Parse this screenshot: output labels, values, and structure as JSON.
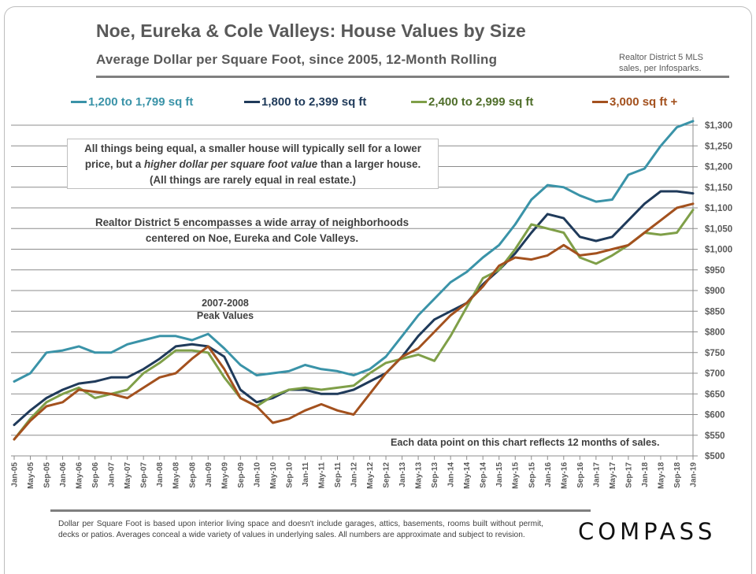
{
  "header": {
    "title": "Noe, Eureka & Cole Valleys: House Values by Size",
    "subtitle": "Average Dollar per Square Foot, since 2005, 12-Month Rolling",
    "source_line1": "Realtor District 5 MLS",
    "source_line2": "sales, per Infosparks."
  },
  "annotations": {
    "note_line1": "All things being equal, a smaller house will typically sell for a lower",
    "note_line2_pre": "price, but a ",
    "note_line2_italic": "higher dollar per square foot value",
    "note_line2_post": " than a larger house.",
    "note_line3": "(All things are rarely equal in real estate.)",
    "district_line1": "Realtor District 5 encompasses a wide array of neighborhoods",
    "district_line2": "centered on Noe, Eureka and Cole Valleys.",
    "peak_line1": "2007-2008",
    "peak_line2": "Peak Values",
    "data_note": "Each data point on this chart reflects 12 months of sales."
  },
  "footer": {
    "footnote": "Dollar per Square Foot is based upon interior living space and doesn't include garages, attics, basements, rooms built without permit, decks or patios. Averages conceal a wide variety of values in underlying sales. All numbers are approximate and subject to revision.",
    "logo": "COMPASS"
  },
  "chart_data": {
    "type": "line",
    "title": "Noe, Eureka & Cole Valleys: House Values by Size",
    "subtitle": "Average Dollar per Square Foot, since 2005, 12-Month Rolling",
    "xlabel": "",
    "ylabel": "Average Dollar per Square Foot",
    "ylim": [
      500,
      1300
    ],
    "y_ticks": [
      500,
      550,
      600,
      650,
      700,
      750,
      800,
      850,
      900,
      950,
      1000,
      1050,
      1100,
      1150,
      1200,
      1250,
      1300
    ],
    "y_tick_labels": [
      "$500",
      "$550",
      "$600",
      "$650",
      "$700",
      "$750",
      "$800",
      "$850",
      "$900",
      "$950",
      "$1,000",
      "$1,050",
      "$1,100",
      "$1,150",
      "$1,200",
      "$1,250",
      "$1,300"
    ],
    "y_axis_side": "right",
    "grid": true,
    "legend_position": "top",
    "x": [
      "Jan-05",
      "May-05",
      "Sep-05",
      "Jan-06",
      "May-06",
      "Sep-06",
      "Jan-07",
      "May-07",
      "Sep-07",
      "Jan-08",
      "May-08",
      "Sep-08",
      "Jan-09",
      "May-09",
      "Sep-09",
      "Jan-10",
      "May-10",
      "Sep-10",
      "Jan-11",
      "May-11",
      "Sep-11",
      "Jan-12",
      "May-12",
      "Sep-12",
      "Jan-13",
      "May-13",
      "Sep-13",
      "Jan-14",
      "May-14",
      "Sep-14",
      "Jan-15",
      "May-15",
      "Sep-15",
      "Jan-16",
      "May-16",
      "Sep-16",
      "Jan-17",
      "May-17",
      "Sep-17",
      "Jan-18",
      "May-18",
      "Sep-18",
      "Jan-19"
    ],
    "series": [
      {
        "name": "1,200 to 1,799 sq ft",
        "color": "#3a93a8",
        "values": [
          680,
          700,
          750,
          755,
          765,
          750,
          750,
          770,
          780,
          790,
          790,
          780,
          795,
          760,
          720,
          695,
          700,
          705,
          720,
          710,
          705,
          695,
          710,
          740,
          790,
          840,
          880,
          920,
          945,
          980,
          1010,
          1060,
          1120,
          1155,
          1150,
          1130,
          1115,
          1120,
          1180,
          1195,
          1250,
          1295,
          1310
        ]
      },
      {
        "name": "1,800 to 2,399 sq ft",
        "color": "#1f3a5a",
        "values": [
          575,
          610,
          640,
          660,
          675,
          680,
          690,
          690,
          710,
          735,
          765,
          770,
          765,
          740,
          660,
          630,
          640,
          660,
          660,
          650,
          650,
          660,
          680,
          700,
          740,
          790,
          830,
          850,
          870,
          915,
          950,
          990,
          1040,
          1085,
          1075,
          1030,
          1020,
          1030,
          1070,
          1110,
          1140,
          1140,
          1135
        ]
      },
      {
        "name": "2,400 to 2,999 sq ft",
        "color": "#7f9f48",
        "values": [
          540,
          590,
          630,
          650,
          665,
          640,
          650,
          660,
          700,
          725,
          755,
          755,
          750,
          690,
          640,
          620,
          645,
          660,
          665,
          660,
          665,
          670,
          700,
          725,
          735,
          745,
          730,
          790,
          860,
          930,
          950,
          1000,
          1060,
          1050,
          1040,
          980,
          965,
          985,
          1010,
          1040,
          1035,
          1040,
          1095
        ]
      },
      {
        "name": "3,000 sq ft +",
        "color": "#a3511e",
        "values": [
          540,
          585,
          620,
          630,
          660,
          655,
          650,
          640,
          665,
          690,
          700,
          735,
          765,
          710,
          640,
          620,
          580,
          590,
          610,
          625,
          610,
          600,
          650,
          700,
          740,
          760,
          800,
          840,
          870,
          910,
          960,
          980,
          975,
          985,
          1010,
          985,
          990,
          1000,
          1010,
          1040,
          1070,
          1100,
          1110
        ]
      }
    ]
  }
}
